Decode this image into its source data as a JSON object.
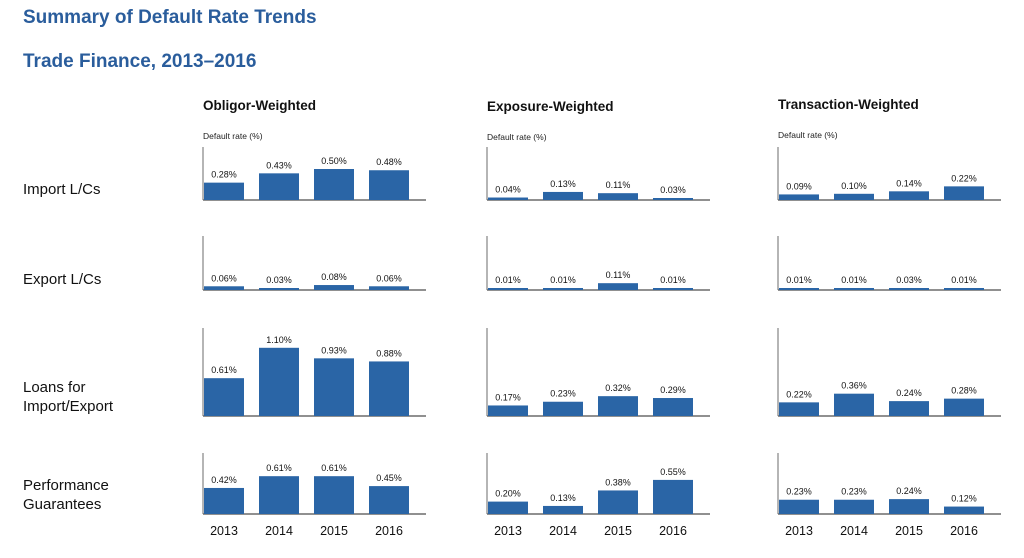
{
  "page": {
    "title": "Summary of Default Rate Trends",
    "subtitle": "Trade Finance, 2013–2016"
  },
  "colors": {
    "bar": "#2a65a6",
    "axis": "#6b6b6b",
    "title": "#2a5d9c"
  },
  "chart_data": {
    "type": "bar",
    "title": "Summary of Default Rate Trends",
    "subtitle": "Trade Finance, 2013–2016",
    "categories": [
      "2013",
      "2014",
      "2015",
      "2016"
    ],
    "ylabel": "Default rate (%)",
    "panels": [
      {
        "name": "Obligor-Weighted",
        "rows": [
          {
            "name": "Import L/Cs",
            "values": [
              0.28,
              0.43,
              0.5,
              0.48
            ],
            "labels": [
              "0.28%",
              "0.43%",
              "0.50%",
              "0.48%"
            ]
          },
          {
            "name": "Export L/Cs",
            "values": [
              0.06,
              0.03,
              0.08,
              0.06
            ],
            "labels": [
              "0.06%",
              "0.03%",
              "0.08%",
              "0.06%"
            ]
          },
          {
            "name": "Loans for Import/Export",
            "values": [
              0.61,
              1.1,
              0.93,
              0.88
            ],
            "labels": [
              "0.61%",
              "1.10%",
              "0.93%",
              "0.88%"
            ]
          },
          {
            "name": "Performance Guarantees",
            "values": [
              0.42,
              0.61,
              0.61,
              0.45
            ],
            "labels": [
              "0.42%",
              "0.61%",
              "0.61%",
              "0.45%"
            ]
          }
        ]
      },
      {
        "name": "Exposure-Weighted",
        "rows": [
          {
            "name": "Import L/Cs",
            "values": [
              0.04,
              0.13,
              0.11,
              0.03
            ],
            "labels": [
              "0.04%",
              "0.13%",
              "0.11%",
              "0.03%"
            ]
          },
          {
            "name": "Export L/Cs",
            "values": [
              0.01,
              0.01,
              0.11,
              0.01
            ],
            "labels": [
              "0.01%",
              "0.01%",
              "0.11%",
              "0.01%"
            ]
          },
          {
            "name": "Loans for Import/Export",
            "values": [
              0.17,
              0.23,
              0.32,
              0.29
            ],
            "labels": [
              "0.17%",
              "0.23%",
              "0.32%",
              "0.29%"
            ]
          },
          {
            "name": "Performance Guarantees",
            "values": [
              0.2,
              0.13,
              0.38,
              0.55
            ],
            "labels": [
              "0.20%",
              "0.13%",
              "0.38%",
              "0.55%"
            ]
          }
        ]
      },
      {
        "name": "Transaction-Weighted",
        "rows": [
          {
            "name": "Import L/Cs",
            "values": [
              0.09,
              0.1,
              0.14,
              0.22
            ],
            "labels": [
              "0.09%",
              "0.10%",
              "0.14%",
              "0.22%"
            ]
          },
          {
            "name": "Export L/Cs",
            "values": [
              0.01,
              0.01,
              0.03,
              0.01
            ],
            "labels": [
              "0.01%",
              "0.01%",
              "0.03%",
              "0.01%"
            ]
          },
          {
            "name": "Loans for Import/Export",
            "values": [
              0.22,
              0.36,
              0.24,
              0.28
            ],
            "labels": [
              "0.22%",
              "0.36%",
              "0.24%",
              "0.28%"
            ]
          },
          {
            "name": "Performance Guarantees",
            "values": [
              0.23,
              0.23,
              0.24,
              0.12
            ],
            "labels": [
              "0.23%",
              "0.23%",
              "0.24%",
              "0.12%"
            ]
          }
        ]
      }
    ],
    "row_labels": [
      [
        "Import L/Cs"
      ],
      [
        "Export L/Cs"
      ],
      [
        "Loans for",
        "Import/Export"
      ],
      [
        "Performance",
        "Guarantees"
      ]
    ],
    "grid": false,
    "legend": "none"
  }
}
